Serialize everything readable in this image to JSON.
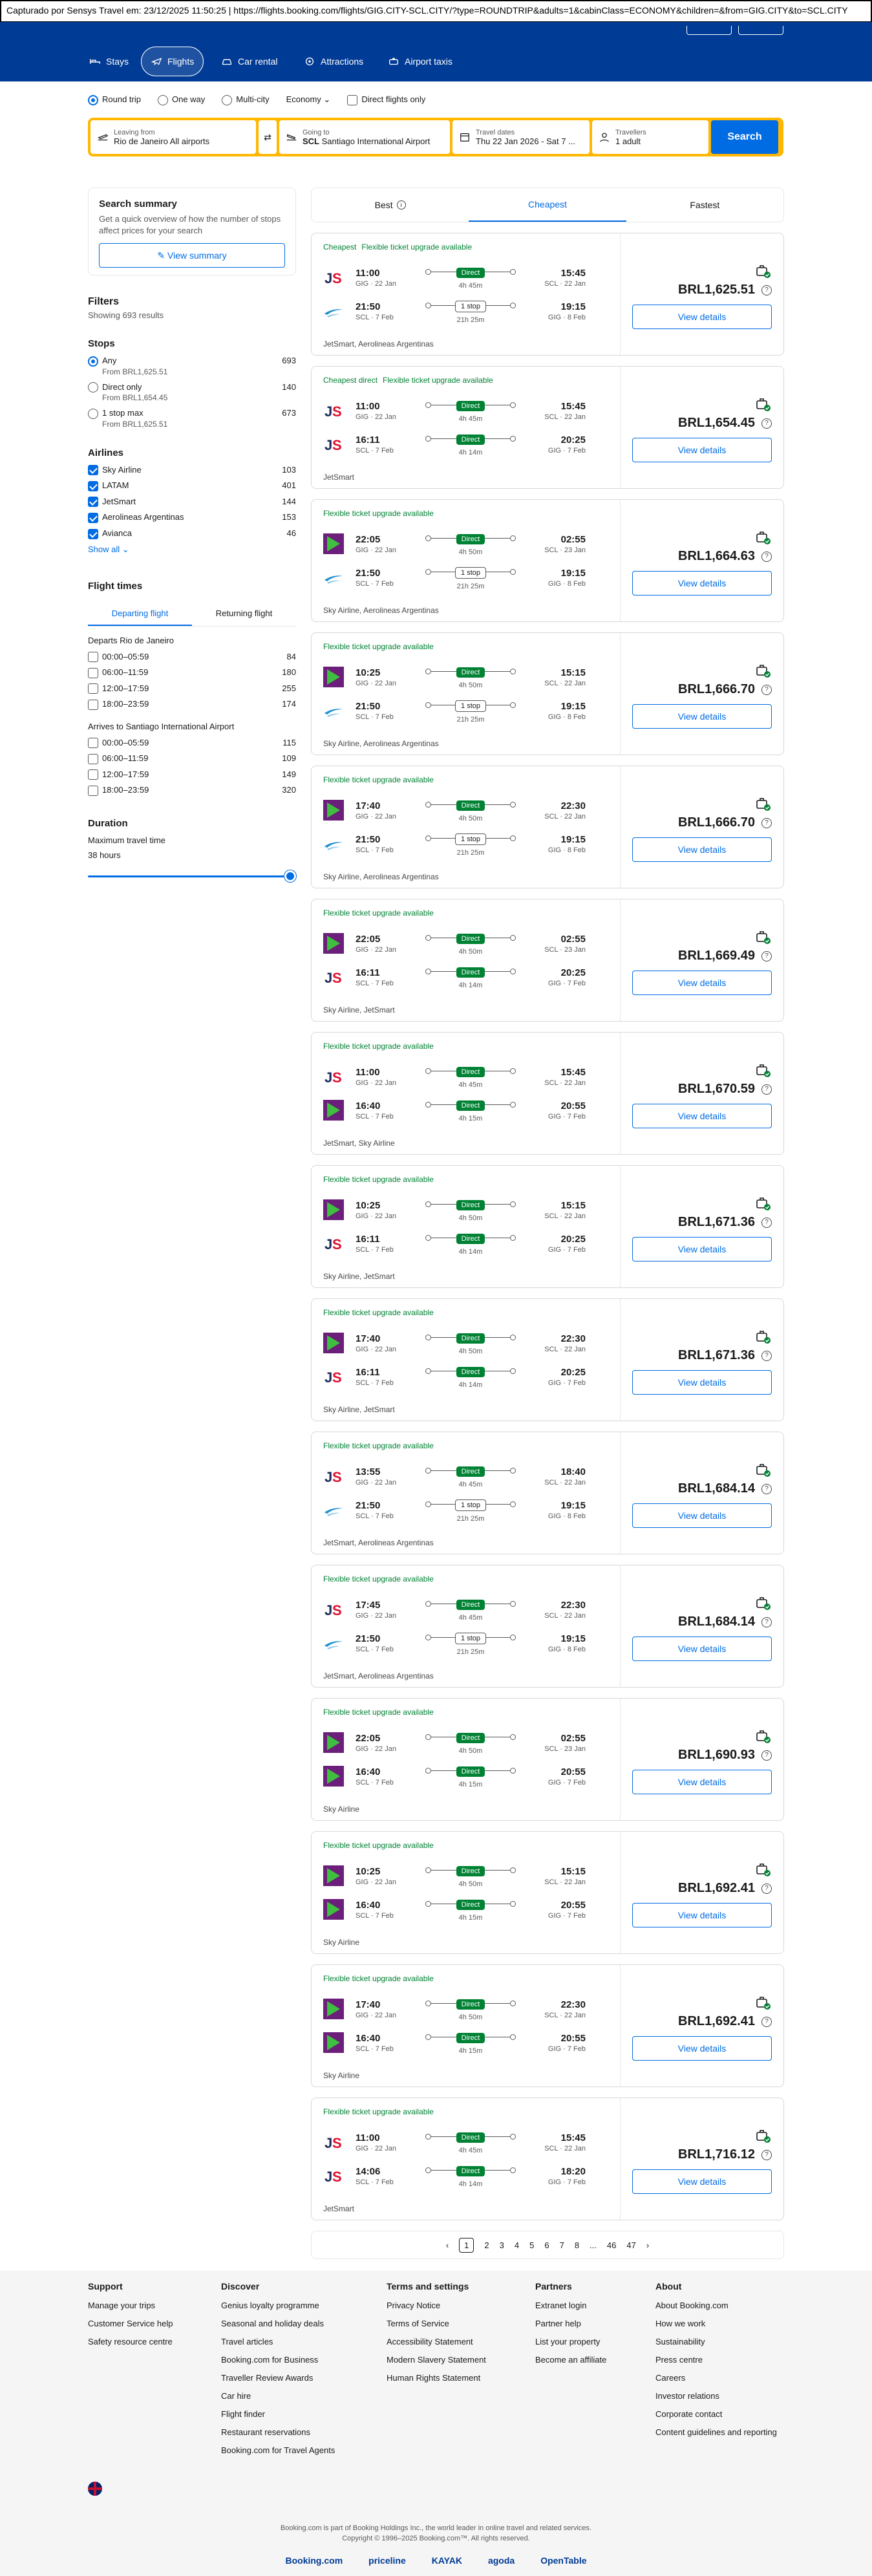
{
  "capture_bar": "Capturado por Sensys Travel em: 23/12/2025 11:50:25 | https://flights.booking.com/flights/GIG.CITY-SCL.CITY/?type=ROUNDTRIP&adults=1&cabinClass=ECONOMY&children=&from=GIG.CITY&to=SCL.CITY",
  "nav": {
    "tabs": [
      {
        "label": "Stays"
      },
      {
        "label": "Flights"
      },
      {
        "label": "Car rental"
      },
      {
        "label": "Attractions"
      },
      {
        "label": "Airport taxis"
      }
    ]
  },
  "trip": {
    "round_trip": "Round trip",
    "one_way": "One way",
    "multi_city": "Multi-city",
    "cabin": "Economy",
    "direct_only": "Direct flights only"
  },
  "search": {
    "from_label": "Leaving from",
    "from_value": "Rio de Janeiro All airports",
    "from_code": "",
    "to_label": "Going to",
    "to_code": "SCL",
    "to_value": "Santiago International Airport",
    "dates_label": "Travel dates",
    "dates_value": "Thu 22 Jan 2026 - Sat 7 ...",
    "travellers_label": "Travellers",
    "travellers_value": "1 adult",
    "search_button": "Search"
  },
  "summary": {
    "title": "Search summary",
    "text": "Get a quick overview of how the number of stops affect prices for your search",
    "button": "View summary"
  },
  "filters": {
    "title": "Filters",
    "showing": "Showing 693 results",
    "stops_title": "Stops",
    "stops": [
      {
        "label": "Any",
        "sub": "From BRL1,625.51",
        "count": "693"
      },
      {
        "label": "Direct only",
        "sub": "From BRL1,654.45",
        "count": "140"
      },
      {
        "label": "1 stop max",
        "sub": "From BRL1,625.51",
        "count": "673"
      }
    ],
    "airlines_title": "Airlines",
    "airlines": [
      {
        "label": "Sky Airline",
        "count": "103"
      },
      {
        "label": "LATAM",
        "count": "401"
      },
      {
        "label": "JetSmart",
        "count": "144"
      },
      {
        "label": "Aerolineas Argentinas",
        "count": "153"
      },
      {
        "label": "Avianca",
        "count": "46"
      }
    ],
    "show_all": "Show all",
    "times_title": "Flight times",
    "tab_departing": "Departing flight",
    "tab_returning": "Returning flight",
    "departs_title": "Departs Rio de Janeiro",
    "departs": [
      {
        "label": "00:00–05:59",
        "count": "84"
      },
      {
        "label": "06:00–11:59",
        "count": "180"
      },
      {
        "label": "12:00–17:59",
        "count": "255"
      },
      {
        "label": "18:00–23:59",
        "count": "174"
      }
    ],
    "arrives_title": "Arrives to Santiago International Airport",
    "arrives": [
      {
        "label": "00:00–05:59",
        "count": "115"
      },
      {
        "label": "06:00–11:59",
        "count": "109"
      },
      {
        "label": "12:00–17:59",
        "count": "149"
      },
      {
        "label": "18:00–23:59",
        "count": "320"
      }
    ],
    "duration_title": "Duration",
    "duration_label": "Maximum travel time",
    "duration_value": "38 hours"
  },
  "sort": {
    "best": "Best",
    "cheapest": "Cheapest",
    "fastest": "Fastest"
  },
  "results": [
    {
      "badges": [
        "Cheapest",
        "Flexible ticket upgrade available"
      ],
      "out": {
        "logo": "JS",
        "dep": "11:00",
        "dep_ap": "GIG · 22 Jan",
        "stop": "Direct",
        "dur": "4h 45m",
        "arr": "15:45",
        "arr_ap": "SCL · 22 Jan"
      },
      "ret": {
        "logo": "AR",
        "dep": "21:50",
        "dep_ap": "SCL · 7 Feb",
        "stop": "1 stop",
        "dur": "21h 25m",
        "arr": "19:15",
        "arr_ap": "GIG · 8 Feb"
      },
      "airlines": "JetSmart, Aerolineas Argentinas",
      "price": "BRL1,625.51"
    },
    {
      "badges": [
        "Cheapest direct",
        "Flexible ticket upgrade available"
      ],
      "out": {
        "logo": "JS",
        "dep": "11:00",
        "dep_ap": "GIG · 22 Jan",
        "stop": "Direct",
        "dur": "4h 45m",
        "arr": "15:45",
        "arr_ap": "SCL · 22 Jan"
      },
      "ret": {
        "logo": "JS",
        "dep": "16:11",
        "dep_ap": "SCL · 7 Feb",
        "stop": "Direct",
        "dur": "4h 14m",
        "arr": "20:25",
        "arr_ap": "GIG · 7 Feb"
      },
      "airlines": "JetSmart",
      "price": "BRL1,654.45"
    },
    {
      "badges": [
        "Flexible ticket upgrade available"
      ],
      "out": {
        "logo": "SKY",
        "dep": "22:05",
        "dep_ap": "GIG · 22 Jan",
        "stop": "Direct",
        "dur": "4h 50m",
        "arr": "02:55",
        "arr_ap": "SCL · 23 Jan"
      },
      "ret": {
        "logo": "AR",
        "dep": "21:50",
        "dep_ap": "SCL · 7 Feb",
        "stop": "1 stop",
        "dur": "21h 25m",
        "arr": "19:15",
        "arr_ap": "GIG · 8 Feb"
      },
      "airlines": "Sky Airline, Aerolineas Argentinas",
      "price": "BRL1,664.63"
    },
    {
      "badges": [
        "Flexible ticket upgrade available"
      ],
      "out": {
        "logo": "SKY",
        "dep": "10:25",
        "dep_ap": "GIG · 22 Jan",
        "stop": "Direct",
        "dur": "4h 50m",
        "arr": "15:15",
        "arr_ap": "SCL · 22 Jan"
      },
      "ret": {
        "logo": "AR",
        "dep": "21:50",
        "dep_ap": "SCL · 7 Feb",
        "stop": "1 stop",
        "dur": "21h 25m",
        "arr": "19:15",
        "arr_ap": "GIG · 8 Feb"
      },
      "airlines": "Sky Airline, Aerolineas Argentinas",
      "price": "BRL1,666.70"
    },
    {
      "badges": [
        "Flexible ticket upgrade available"
      ],
      "out": {
        "logo": "SKY",
        "dep": "17:40",
        "dep_ap": "GIG · 22 Jan",
        "stop": "Direct",
        "dur": "4h 50m",
        "arr": "22:30",
        "arr_ap": "SCL · 22 Jan"
      },
      "ret": {
        "logo": "AR",
        "dep": "21:50",
        "dep_ap": "SCL · 7 Feb",
        "stop": "1 stop",
        "dur": "21h 25m",
        "arr": "19:15",
        "arr_ap": "GIG · 8 Feb"
      },
      "airlines": "Sky Airline, Aerolineas Argentinas",
      "price": "BRL1,666.70"
    },
    {
      "badges": [
        "Flexible ticket upgrade available"
      ],
      "out": {
        "logo": "SKY",
        "dep": "22:05",
        "dep_ap": "GIG · 22 Jan",
        "stop": "Direct",
        "dur": "4h 50m",
        "arr": "02:55",
        "arr_ap": "SCL · 23 Jan"
      },
      "ret": {
        "logo": "JS",
        "dep": "16:11",
        "dep_ap": "SCL · 7 Feb",
        "stop": "Direct",
        "dur": "4h 14m",
        "arr": "20:25",
        "arr_ap": "GIG · 7 Feb"
      },
      "airlines": "Sky Airline, JetSmart",
      "price": "BRL1,669.49"
    },
    {
      "badges": [
        "Flexible ticket upgrade available"
      ],
      "out": {
        "logo": "JS",
        "dep": "11:00",
        "dep_ap": "GIG · 22 Jan",
        "stop": "Direct",
        "dur": "4h 45m",
        "arr": "15:45",
        "arr_ap": "SCL · 22 Jan"
      },
      "ret": {
        "logo": "SKY",
        "dep": "16:40",
        "dep_ap": "SCL · 7 Feb",
        "stop": "Direct",
        "dur": "4h 15m",
        "arr": "20:55",
        "arr_ap": "GIG · 7 Feb"
      },
      "airlines": "JetSmart, Sky Airline",
      "price": "BRL1,670.59"
    },
    {
      "badges": [
        "Flexible ticket upgrade available"
      ],
      "out": {
        "logo": "SKY",
        "dep": "10:25",
        "dep_ap": "GIG · 22 Jan",
        "stop": "Direct",
        "dur": "4h 50m",
        "arr": "15:15",
        "arr_ap": "SCL · 22 Jan"
      },
      "ret": {
        "logo": "JS",
        "dep": "16:11",
        "dep_ap": "SCL · 7 Feb",
        "stop": "Direct",
        "dur": "4h 14m",
        "arr": "20:25",
        "arr_ap": "GIG · 7 Feb"
      },
      "airlines": "Sky Airline, JetSmart",
      "price": "BRL1,671.36"
    },
    {
      "badges": [
        "Flexible ticket upgrade available"
      ],
      "out": {
        "logo": "SKY",
        "dep": "17:40",
        "dep_ap": "GIG · 22 Jan",
        "stop": "Direct",
        "dur": "4h 50m",
        "arr": "22:30",
        "arr_ap": "SCL · 22 Jan"
      },
      "ret": {
        "logo": "JS",
        "dep": "16:11",
        "dep_ap": "SCL · 7 Feb",
        "stop": "Direct",
        "dur": "4h 14m",
        "arr": "20:25",
        "arr_ap": "GIG · 7 Feb"
      },
      "airlines": "Sky Airline, JetSmart",
      "price": "BRL1,671.36"
    },
    {
      "badges": [
        "Flexible ticket upgrade available"
      ],
      "out": {
        "logo": "JS",
        "dep": "13:55",
        "dep_ap": "GIG · 22 Jan",
        "stop": "Direct",
        "dur": "4h 45m",
        "arr": "18:40",
        "arr_ap": "SCL · 22 Jan"
      },
      "ret": {
        "logo": "AR",
        "dep": "21:50",
        "dep_ap": "SCL · 7 Feb",
        "stop": "1 stop",
        "dur": "21h 25m",
        "arr": "19:15",
        "arr_ap": "GIG · 8 Feb"
      },
      "airlines": "JetSmart, Aerolineas Argentinas",
      "price": "BRL1,684.14"
    },
    {
      "badges": [
        "Flexible ticket upgrade available"
      ],
      "out": {
        "logo": "JS",
        "dep": "17:45",
        "dep_ap": "GIG · 22 Jan",
        "stop": "Direct",
        "dur": "4h 45m",
        "arr": "22:30",
        "arr_ap": "SCL · 22 Jan"
      },
      "ret": {
        "logo": "AR",
        "dep": "21:50",
        "dep_ap": "SCL · 7 Feb",
        "stop": "1 stop",
        "dur": "21h 25m",
        "arr": "19:15",
        "arr_ap": "GIG · 8 Feb"
      },
      "airlines": "JetSmart, Aerolineas Argentinas",
      "price": "BRL1,684.14"
    },
    {
      "badges": [
        "Flexible ticket upgrade available"
      ],
      "out": {
        "logo": "SKY",
        "dep": "22:05",
        "dep_ap": "GIG · 22 Jan",
        "stop": "Direct",
        "dur": "4h 50m",
        "arr": "02:55",
        "arr_ap": "SCL · 23 Jan"
      },
      "ret": {
        "logo": "SKY",
        "dep": "16:40",
        "dep_ap": "SCL · 7 Feb",
        "stop": "Direct",
        "dur": "4h 15m",
        "arr": "20:55",
        "arr_ap": "GIG · 7 Feb"
      },
      "airlines": "Sky Airline",
      "price": "BRL1,690.93"
    },
    {
      "badges": [
        "Flexible ticket upgrade available"
      ],
      "out": {
        "logo": "SKY",
        "dep": "10:25",
        "dep_ap": "GIG · 22 Jan",
        "stop": "Direct",
        "dur": "4h 50m",
        "arr": "15:15",
        "arr_ap": "SCL · 22 Jan"
      },
      "ret": {
        "logo": "SKY",
        "dep": "16:40",
        "dep_ap": "SCL · 7 Feb",
        "stop": "Direct",
        "dur": "4h 15m",
        "arr": "20:55",
        "arr_ap": "GIG · 7 Feb"
      },
      "airlines": "Sky Airline",
      "price": "BRL1,692.41"
    },
    {
      "badges": [
        "Flexible ticket upgrade available"
      ],
      "out": {
        "logo": "SKY",
        "dep": "17:40",
        "dep_ap": "GIG · 22 Jan",
        "stop": "Direct",
        "dur": "4h 50m",
        "arr": "22:30",
        "arr_ap": "SCL · 22 Jan"
      },
      "ret": {
        "logo": "SKY",
        "dep": "16:40",
        "dep_ap": "SCL · 7 Feb",
        "stop": "Direct",
        "dur": "4h 15m",
        "arr": "20:55",
        "arr_ap": "GIG · 7 Feb"
      },
      "airlines": "Sky Airline",
      "price": "BRL1,692.41"
    },
    {
      "badges": [
        "Flexible ticket upgrade available"
      ],
      "out": {
        "logo": "JS",
        "dep": "11:00",
        "dep_ap": "GIG · 22 Jan",
        "stop": "Direct",
        "dur": "4h 45m",
        "arr": "15:45",
        "arr_ap": "SCL · 22 Jan"
      },
      "ret": {
        "logo": "JS",
        "dep": "14:06",
        "dep_ap": "SCL · 7 Feb",
        "stop": "Direct",
        "dur": "4h 14m",
        "arr": "18:20",
        "arr_ap": "GIG · 7 Feb"
      },
      "airlines": "JetSmart",
      "price": "BRL1,716.12"
    }
  ],
  "view_details": "View details",
  "pager": {
    "prev": "‹",
    "pages": [
      "1",
      "2",
      "3",
      "4",
      "5",
      "6",
      "7",
      "8",
      "...",
      "46",
      "47"
    ],
    "next": "›"
  },
  "footer": {
    "cols": [
      {
        "title": "Support",
        "items": [
          "Manage your trips",
          "Customer Service help",
          "Safety resource centre"
        ]
      },
      {
        "title": "Discover",
        "items": [
          "Genius loyalty programme",
          "Seasonal and holiday deals",
          "Travel articles",
          "Booking.com for Business",
          "Traveller Review Awards",
          "Car hire",
          "Flight finder",
          "Restaurant reservations",
          "Booking.com for Travel Agents"
        ]
      },
      {
        "title": "Terms and settings",
        "items": [
          "Privacy Notice",
          "Terms of Service",
          "Accessibility Statement",
          "Modern Slavery Statement",
          "Human Rights Statement"
        ]
      },
      {
        "title": "Partners",
        "items": [
          "Extranet login",
          "Partner help",
          "List your property",
          "Become an affiliate"
        ]
      },
      {
        "title": "About",
        "items": [
          "About Booking.com",
          "How we work",
          "Sustainability",
          "Press centre",
          "Careers",
          "Investor relations",
          "Corporate contact",
          "Content guidelines and reporting"
        ]
      }
    ],
    "copy1": "Booking.com is part of Booking Holdings Inc., the world leader in online travel and related services.",
    "copy2": "Copyright © 1996–2025 Booking.com™. All rights reserved.",
    "brands": [
      "Booking.com",
      "priceline",
      "KAYAK",
      "agoda",
      "OpenTable"
    ]
  },
  "colors": {
    "brand_blue": "#003b95",
    "accent": "#006ce4",
    "search_border": "#ffb700",
    "green": "#008234",
    "jetsmart": "#1b2a5c",
    "sky": "#6b1e7a",
    "ar": "#1f8fd1"
  }
}
